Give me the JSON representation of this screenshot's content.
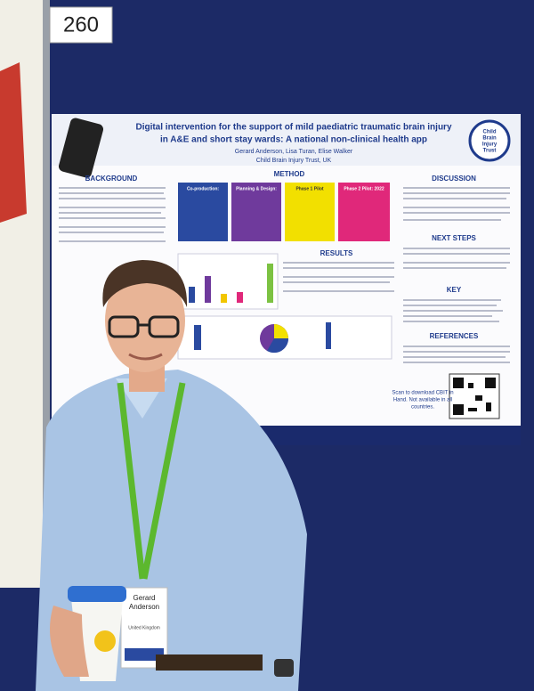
{
  "board_number": "260",
  "poster": {
    "title_lines": [
      "Digital intervention for the support of mild paediatric traumatic brain injury",
      "in A&E and short stay wards: A national non-clinical health app"
    ],
    "authors": "Gerard Anderson, Lisa Turan, Elise Walker",
    "affiliation": "Child Brain Injury Trust, UK",
    "logo": [
      "Child",
      "Brain",
      "Injury",
      "Trust"
    ],
    "sections": {
      "background": "BACKGROUND",
      "method": "METHOD",
      "results": "RESULTS",
      "discussion": "DISCUSSION",
      "next_steps": "NEXT STEPS",
      "key": "KEY",
      "references": "REFERENCES"
    },
    "method_boxes": [
      "Co-production:",
      "Planning & Design:",
      "Phase 1 Pilot",
      "Phase 2 Pilot: 2022"
    ],
    "qr_caption": [
      "Scan to download CBIT in",
      "Hand. Not available in all",
      "countries."
    ]
  },
  "badge": {
    "name_lines": [
      "Gerard",
      "Anderson"
    ],
    "country": "United Kingdom"
  }
}
